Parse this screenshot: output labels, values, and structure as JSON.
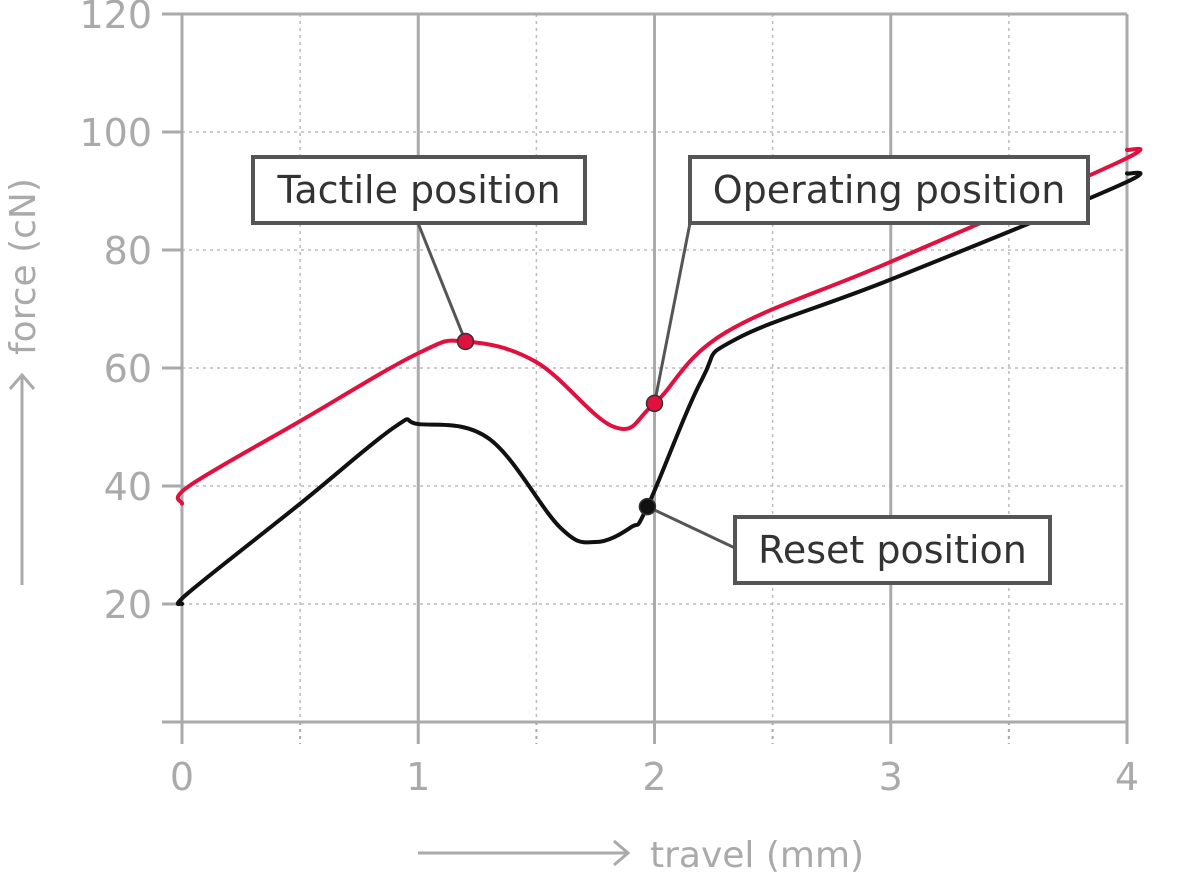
{
  "chart_data": {
    "type": "line",
    "title": "",
    "xlabel": "travel (mm)",
    "ylabel": "force (cN)",
    "xlim": [
      0,
      4
    ],
    "ylim": [
      0,
      120
    ],
    "x_ticks": [
      0,
      1,
      2,
      3,
      4
    ],
    "y_ticks": [
      20,
      40,
      60,
      80,
      100,
      120
    ],
    "grid": true,
    "colors": {
      "series1": "#e0103f",
      "series2": "#111111",
      "grid": "#bbbbbb",
      "axis": "#aaaaaa",
      "callout_border": "#555555"
    },
    "series": [
      {
        "x": [
          0,
          0.03,
          0.5,
          1.0,
          1.2,
          1.5,
          1.83,
          2.0,
          2.3,
          3.0,
          3.97,
          4.0
        ],
        "values": [
          37,
          40,
          51,
          62.5,
          64.5,
          61,
          50,
          54,
          66,
          78,
          95,
          97
        ]
      },
      {
        "x": [
          0,
          0.03,
          0.5,
          0.9,
          1.0,
          1.3,
          1.6,
          1.75,
          1.9,
          1.97,
          2.2,
          2.35,
          3.0,
          3.97,
          4.0
        ],
        "values": [
          20,
          22,
          37,
          50,
          50.5,
          48,
          33,
          30.5,
          33,
          36.5,
          58,
          65,
          75,
          91,
          93
        ]
      }
    ],
    "annotations": [
      {
        "label": "Tactile position",
        "x": 1.2,
        "y": 64.5,
        "marker_color": "#e0103f"
      },
      {
        "label": "Operating position",
        "x": 2.0,
        "y": 54,
        "marker_color": "#e0103f"
      },
      {
        "label": "Reset position",
        "x": 1.97,
        "y": 36.5,
        "marker_color": "#111111"
      }
    ]
  }
}
